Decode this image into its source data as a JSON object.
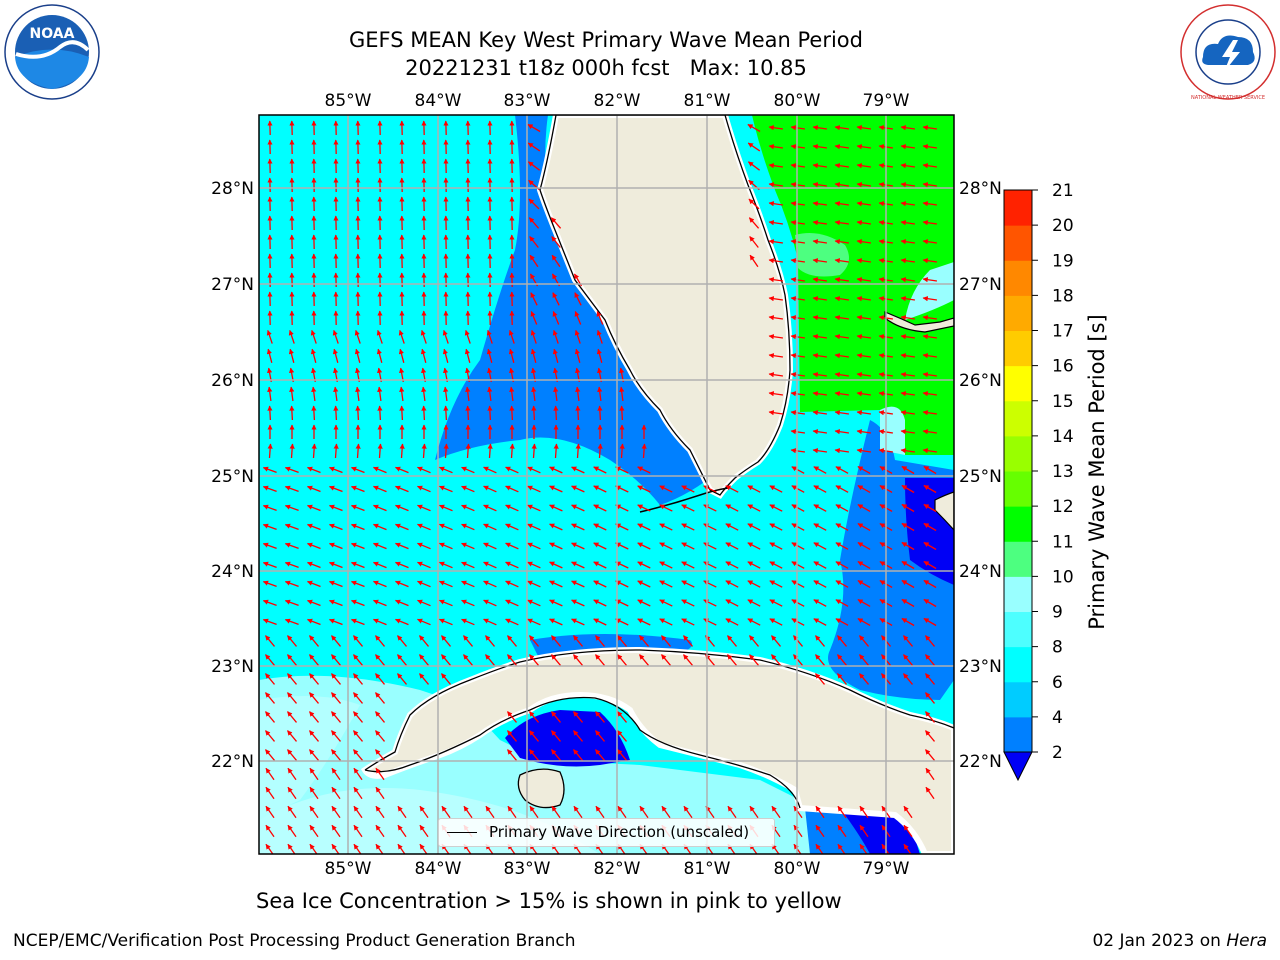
{
  "title": {
    "line1": "GEFS MEAN Key West Primary Wave Mean Period",
    "line2": "20221231 t18z 000h fcst   Max: 10.85"
  },
  "logos": {
    "noaa_text": "NOAA",
    "nws_text": "NATIONAL WEATHER SERVICE"
  },
  "map": {
    "lon_ticks": [
      "85°W",
      "84°W",
      "83°W",
      "82°W",
      "81°W",
      "80°W",
      "79°W"
    ],
    "lat_ticks": [
      "28°N",
      "27°N",
      "26°N",
      "25°N",
      "24°N",
      "23°N",
      "22°N"
    ],
    "legend_label": "Primary Wave Direction (unscaled)",
    "colors": {
      "land": "#efecdc",
      "cyan": "#00ffff",
      "light_cyan": "#99ffff",
      "mid_cyan": "#4dffff",
      "blue": "#0080ff",
      "dark_blue": "#0000f5",
      "green": "#00ff00",
      "light_green": "#4dff80",
      "arrow": "#ff0000",
      "grid": "#b0b0b0"
    }
  },
  "colorbar": {
    "label": "Primary Wave Mean Period [s]",
    "ticks": [
      "2",
      "4",
      "6",
      "8",
      "9",
      "10",
      "11",
      "12",
      "13",
      "14",
      "15",
      "16",
      "17",
      "18",
      "19",
      "20",
      "21"
    ],
    "colors": [
      "#0080ff",
      "#00ccff",
      "#00ffff",
      "#4dffff",
      "#99ffff",
      "#4dff80",
      "#00ff00",
      "#66ff00",
      "#99ff00",
      "#ccff00",
      "#ffff00",
      "#ffcc00",
      "#ffaa00",
      "#ff8800",
      "#ff5500",
      "#ff2200"
    ],
    "extend_color": "#0000f5"
  },
  "caption": "Sea Ice Concentration > 15% is shown in pink to yellow",
  "footer": {
    "left": "NCEP/EMC/Verification Post Processing Product Generation Branch",
    "right_date": "02 Jan 2023 on",
    "right_machine": "Hera"
  }
}
